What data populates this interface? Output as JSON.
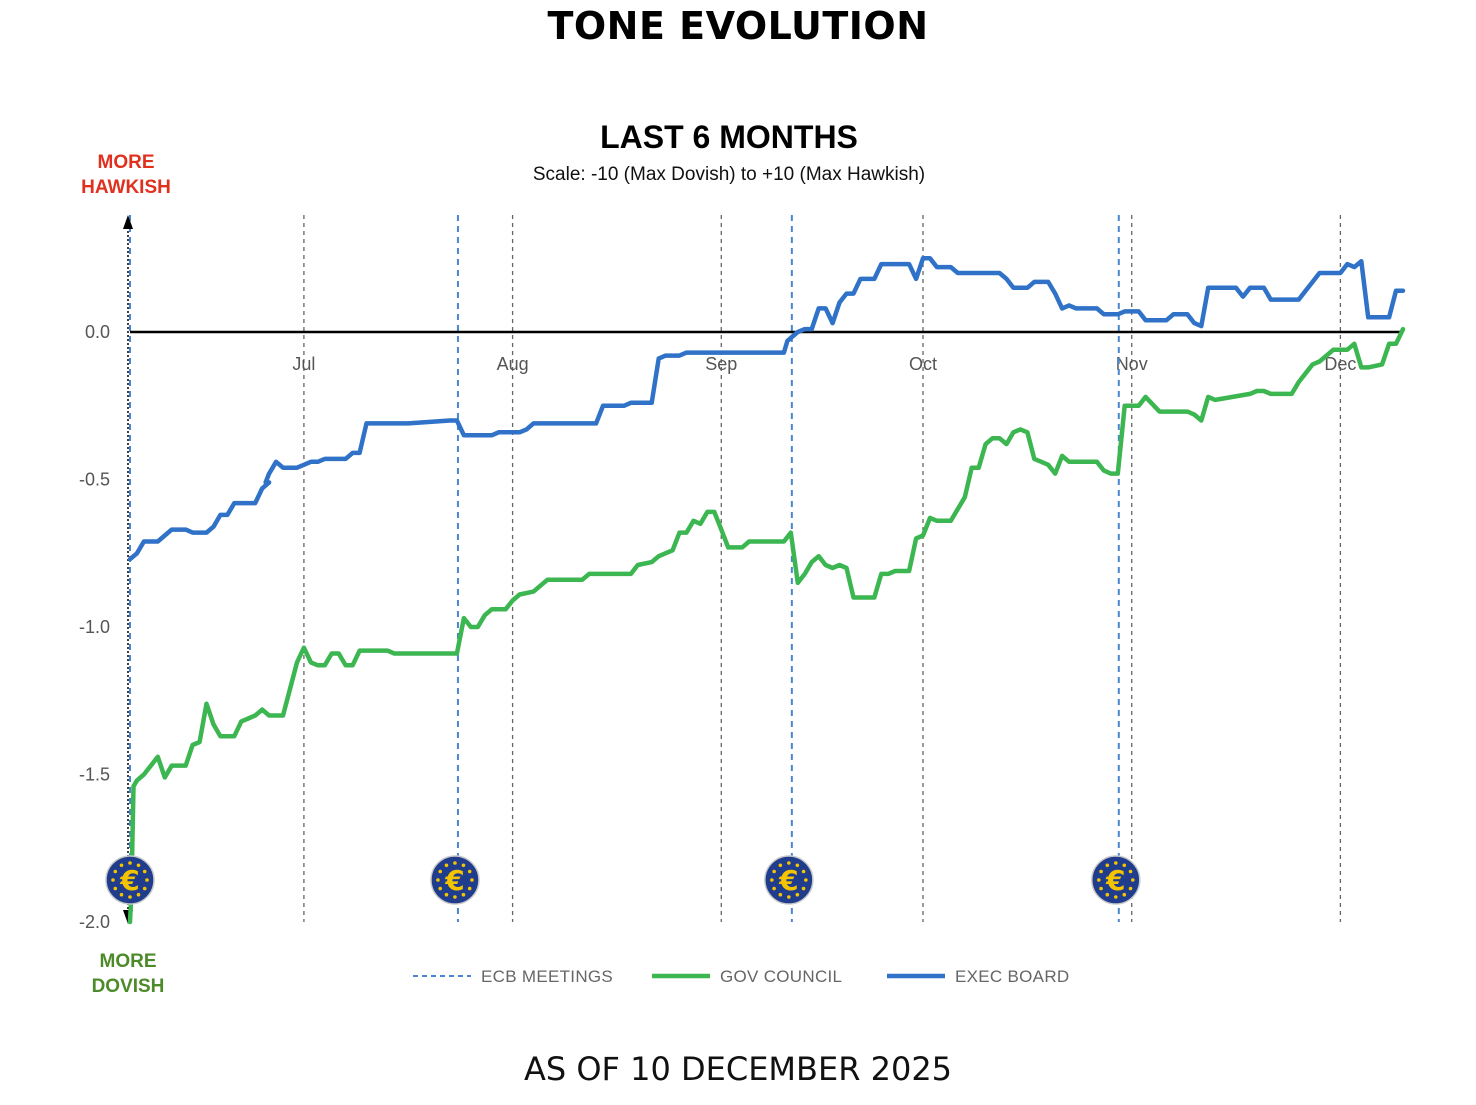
{
  "page": {
    "title": "TONE EVOLUTION",
    "footer": "AS OF 10 DECEMBER 2025"
  },
  "colors": {
    "gov_council": "#3cb650",
    "exec_board": "#2f72c8",
    "ecb_meetings": "#4a86d0",
    "hawkish_label": "#e0301e",
    "dovish_label": "#4d8a2a",
    "ecb_logo_bg": "#1f3d8c",
    "ecb_logo_symbol": "#f5c400"
  },
  "chart_data": {
    "type": "line",
    "title": "LAST 6 MONTHS",
    "subtitle": "Scale: -10 (Max Dovish)  to +10 (Max Hawkish)",
    "axis_top_label": [
      "MORE",
      "HAWKISH"
    ],
    "axis_bottom_label": [
      "MORE",
      "DOVISH"
    ],
    "ylim": [
      -2.0,
      0.35
    ],
    "y_ticks": [
      0.0,
      -0.5,
      -1.0,
      -1.5,
      -2.0
    ],
    "y_tick_labels": [
      "0.0",
      "-0.5",
      "-1.0",
      "-1.5",
      "-2.0"
    ],
    "x_domain_days": [
      0,
      183
    ],
    "month_labels": [
      {
        "label": "Jul",
        "day": 25
      },
      {
        "label": "Aug",
        "day": 55
      },
      {
        "label": "Sep",
        "day": 85
      },
      {
        "label": "Oct",
        "day": 114
      },
      {
        "label": "Nov",
        "day": 144
      },
      {
        "label": "Dec",
        "day": 174
      }
    ],
    "ecb_meetings_days": [
      0,
      47,
      95,
      142
    ],
    "grid": "vertical dashed at month starts",
    "legend": {
      "position": "bottom",
      "items": [
        {
          "label": "ECB MEETINGS",
          "style": "dashed",
          "color": "#4a86d0"
        },
        {
          "label": "GOV COUNCIL",
          "style": "solid",
          "color": "#3cb650"
        },
        {
          "label": "EXEC BOARD",
          "style": "solid",
          "color": "#2f72c8"
        }
      ]
    },
    "series": [
      {
        "name": "EXEC BOARD",
        "color": "#2f72c8",
        "points": [
          [
            0,
            -0.77
          ],
          [
            1,
            -0.75
          ],
          [
            2,
            -0.71
          ],
          [
            4,
            -0.71
          ],
          [
            5,
            -0.69
          ],
          [
            6,
            -0.67
          ],
          [
            8,
            -0.67
          ],
          [
            9,
            -0.68
          ],
          [
            11,
            -0.68
          ],
          [
            12,
            -0.66
          ],
          [
            13,
            -0.62
          ],
          [
            14,
            -0.62
          ],
          [
            15,
            -0.58
          ],
          [
            18,
            -0.58
          ],
          [
            19,
            -0.53
          ],
          [
            20,
            -0.51
          ],
          [
            19.5,
            -0.51
          ],
          [
            20,
            -0.48
          ],
          [
            21,
            -0.44
          ],
          [
            22,
            -0.46
          ],
          [
            24,
            -0.46
          ],
          [
            25,
            -0.45
          ],
          [
            26,
            -0.44
          ],
          [
            27,
            -0.44
          ],
          [
            28,
            -0.43
          ],
          [
            31,
            -0.43
          ],
          [
            32,
            -0.41
          ],
          [
            33,
            -0.41
          ],
          [
            34,
            -0.31
          ],
          [
            40,
            -0.31
          ],
          [
            46,
            -0.3
          ],
          [
            47,
            -0.3
          ],
          [
            48,
            -0.35
          ],
          [
            52,
            -0.35
          ],
          [
            53,
            -0.34
          ],
          [
            56,
            -0.34
          ],
          [
            57,
            -0.33
          ],
          [
            58,
            -0.31
          ],
          [
            67,
            -0.31
          ],
          [
            68,
            -0.25
          ],
          [
            71,
            -0.25
          ],
          [
            72,
            -0.24
          ],
          [
            75,
            -0.24
          ],
          [
            76,
            -0.09
          ],
          [
            77,
            -0.08
          ],
          [
            79,
            -0.08
          ],
          [
            80,
            -0.07
          ],
          [
            84,
            -0.07
          ],
          [
            86,
            -0.07
          ],
          [
            87,
            -0.07
          ],
          [
            88,
            -0.07
          ],
          [
            94,
            -0.07
          ],
          [
            94.5,
            -0.03
          ],
          [
            95,
            -0.02
          ],
          [
            96,
            0.0
          ],
          [
            97,
            0.01
          ],
          [
            98,
            0.01
          ],
          [
            99,
            0.08
          ],
          [
            100,
            0.08
          ],
          [
            101,
            0.03
          ],
          [
            102,
            0.1
          ],
          [
            103,
            0.13
          ],
          [
            104,
            0.13
          ],
          [
            105,
            0.18
          ],
          [
            107,
            0.18
          ],
          [
            108,
            0.23
          ],
          [
            112,
            0.23
          ],
          [
            113,
            0.18
          ],
          [
            114,
            0.25
          ],
          [
            115,
            0.25
          ],
          [
            116,
            0.22
          ],
          [
            118,
            0.22
          ],
          [
            119,
            0.2
          ],
          [
            125,
            0.2
          ],
          [
            126,
            0.18
          ],
          [
            127,
            0.15
          ],
          [
            129,
            0.15
          ],
          [
            130,
            0.17
          ],
          [
            132,
            0.17
          ],
          [
            133,
            0.13
          ],
          [
            134,
            0.08
          ],
          [
            135,
            0.09
          ],
          [
            136,
            0.08
          ],
          [
            139,
            0.08
          ],
          [
            140,
            0.06
          ],
          [
            142,
            0.06
          ],
          [
            143,
            0.07
          ],
          [
            145,
            0.07
          ],
          [
            146,
            0.04
          ],
          [
            149,
            0.04
          ],
          [
            150,
            0.06
          ],
          [
            152,
            0.06
          ],
          [
            153,
            0.03
          ],
          [
            154,
            0.02
          ],
          [
            155,
            0.15
          ],
          [
            157,
            0.15
          ],
          [
            158,
            0.15
          ],
          [
            159,
            0.15
          ],
          [
            160,
            0.12
          ],
          [
            161,
            0.15
          ],
          [
            163,
            0.15
          ],
          [
            164,
            0.11
          ],
          [
            168,
            0.11
          ],
          [
            169,
            0.14
          ],
          [
            170,
            0.17
          ],
          [
            171,
            0.2
          ],
          [
            174,
            0.2
          ],
          [
            175,
            0.23
          ],
          [
            176,
            0.22
          ],
          [
            177,
            0.24
          ],
          [
            178,
            0.05
          ],
          [
            181,
            0.05
          ],
          [
            182,
            0.14
          ],
          [
            183,
            0.14
          ]
        ]
      },
      {
        "name": "GOV COUNCIL",
        "color": "#3cb650",
        "points": [
          [
            0,
            -2.0
          ],
          [
            0.2,
            -1.9
          ],
          [
            0.5,
            -1.54
          ],
          [
            1,
            -1.52
          ],
          [
            2,
            -1.5
          ],
          [
            3,
            -1.47
          ],
          [
            4,
            -1.44
          ],
          [
            5,
            -1.51
          ],
          [
            6,
            -1.47
          ],
          [
            8,
            -1.47
          ],
          [
            9,
            -1.4
          ],
          [
            10,
            -1.39
          ],
          [
            11,
            -1.26
          ],
          [
            12,
            -1.33
          ],
          [
            13,
            -1.37
          ],
          [
            15,
            -1.37
          ],
          [
            16,
            -1.32
          ],
          [
            17,
            -1.31
          ],
          [
            18,
            -1.3
          ],
          [
            19,
            -1.28
          ],
          [
            20,
            -1.3
          ],
          [
            22,
            -1.3
          ],
          [
            23,
            -1.21
          ],
          [
            24,
            -1.12
          ],
          [
            25,
            -1.07
          ],
          [
            26,
            -1.12
          ],
          [
            27,
            -1.13
          ],
          [
            28,
            -1.13
          ],
          [
            29,
            -1.09
          ],
          [
            30,
            -1.09
          ],
          [
            31,
            -1.13
          ],
          [
            32,
            -1.13
          ],
          [
            33,
            -1.08
          ],
          [
            37,
            -1.08
          ],
          [
            38,
            -1.09
          ],
          [
            39,
            -1.09
          ],
          [
            40,
            -1.09
          ],
          [
            47,
            -1.09
          ],
          [
            48,
            -0.97
          ],
          [
            49,
            -1.0
          ],
          [
            50,
            -1.0
          ],
          [
            51,
            -0.96
          ],
          [
            52,
            -0.94
          ],
          [
            54,
            -0.94
          ],
          [
            55,
            -0.91
          ],
          [
            56,
            -0.89
          ],
          [
            58,
            -0.88
          ],
          [
            59,
            -0.86
          ],
          [
            60,
            -0.84
          ],
          [
            65,
            -0.84
          ],
          [
            66,
            -0.82
          ],
          [
            72,
            -0.82
          ],
          [
            73,
            -0.79
          ],
          [
            75,
            -0.78
          ],
          [
            76,
            -0.76
          ],
          [
            78,
            -0.74
          ],
          [
            79,
            -0.68
          ],
          [
            80,
            -0.68
          ],
          [
            81,
            -0.64
          ],
          [
            82,
            -0.65
          ],
          [
            83,
            -0.61
          ],
          [
            84,
            -0.61
          ],
          [
            85,
            -0.67
          ],
          [
            86,
            -0.73
          ],
          [
            88,
            -0.73
          ],
          [
            89,
            -0.71
          ],
          [
            94,
            -0.71
          ],
          [
            95,
            -0.68
          ],
          [
            96,
            -0.85
          ],
          [
            97,
            -0.82
          ],
          [
            98,
            -0.78
          ],
          [
            99,
            -0.76
          ],
          [
            100,
            -0.79
          ],
          [
            101,
            -0.8
          ],
          [
            102,
            -0.79
          ],
          [
            103,
            -0.8
          ],
          [
            104,
            -0.9
          ],
          [
            107,
            -0.9
          ],
          [
            108,
            -0.82
          ],
          [
            109,
            -0.82
          ],
          [
            110,
            -0.81
          ],
          [
            112,
            -0.81
          ],
          [
            113,
            -0.7
          ],
          [
            114,
            -0.69
          ],
          [
            115,
            -0.63
          ],
          [
            116,
            -0.64
          ],
          [
            118,
            -0.64
          ],
          [
            119,
            -0.6
          ],
          [
            120,
            -0.56
          ],
          [
            121,
            -0.46
          ],
          [
            122,
            -0.46
          ],
          [
            123,
            -0.38
          ],
          [
            124,
            -0.36
          ],
          [
            125,
            -0.36
          ],
          [
            126,
            -0.38
          ],
          [
            127,
            -0.34
          ],
          [
            128,
            -0.33
          ],
          [
            129,
            -0.34
          ],
          [
            130,
            -0.43
          ],
          [
            131,
            -0.44
          ],
          [
            132,
            -0.45
          ],
          [
            133,
            -0.48
          ],
          [
            134,
            -0.42
          ],
          [
            135,
            -0.44
          ],
          [
            139,
            -0.44
          ],
          [
            140,
            -0.47
          ],
          [
            141,
            -0.48
          ],
          [
            142,
            -0.48
          ],
          [
            143,
            -0.25
          ],
          [
            145,
            -0.25
          ],
          [
            146,
            -0.22
          ],
          [
            148,
            -0.27
          ],
          [
            150,
            -0.27
          ],
          [
            152,
            -0.27
          ],
          [
            153,
            -0.28
          ],
          [
            154,
            -0.3
          ],
          [
            155,
            -0.22
          ],
          [
            156,
            -0.23
          ],
          [
            161,
            -0.21
          ],
          [
            162,
            -0.2
          ],
          [
            163,
            -0.2
          ],
          [
            164,
            -0.21
          ],
          [
            167,
            -0.21
          ],
          [
            168,
            -0.17
          ],
          [
            169,
            -0.14
          ],
          [
            170,
            -0.11
          ],
          [
            171,
            -0.1
          ],
          [
            172,
            -0.08
          ],
          [
            173,
            -0.06
          ],
          [
            175,
            -0.06
          ],
          [
            176,
            -0.04
          ],
          [
            177,
            -0.12
          ],
          [
            178,
            -0.12
          ],
          [
            180,
            -0.11
          ],
          [
            181,
            -0.04
          ],
          [
            182,
            -0.04
          ],
          [
            183,
            0.01
          ]
        ]
      }
    ]
  }
}
